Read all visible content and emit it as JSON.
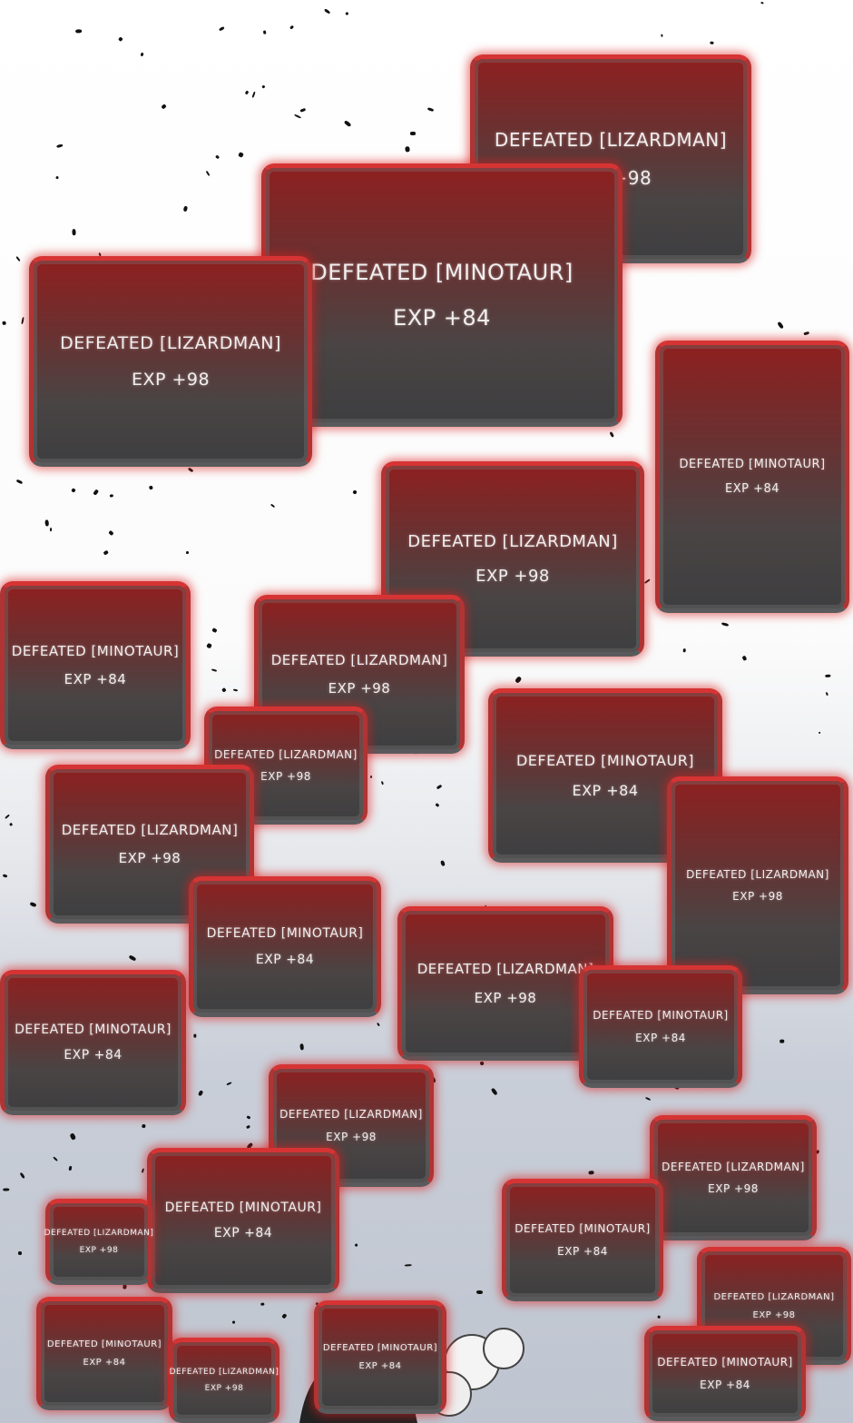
{
  "boxes": [
    {
      "title": "DEFEATED [LIZARDMAN]",
      "exp": "EXP +98"
    },
    {
      "title": "DEFEATED [MINOTAUR]",
      "exp": "EXP +84"
    },
    {
      "title": "DEFEATED [LIZARDMAN]",
      "exp": "EXP +98"
    },
    {
      "title": "DEFEATED [MINOTAUR]",
      "exp": "EXP +84"
    },
    {
      "title": "DEFEATED [LIZARDMAN]",
      "exp": "EXP +98"
    },
    {
      "title": "DEFEATED [MINOTAUR]",
      "exp": "EXP +84"
    },
    {
      "title": "DEFEATED [LIZARDMAN]",
      "exp": "EXP +98"
    },
    {
      "title": "DEFEATED [LIZARDMAN]",
      "exp": "EXP +98"
    },
    {
      "title": "DEFEATED [MINOTAUR]",
      "exp": "EXP +84"
    },
    {
      "title": "DEFEATED [LIZARDMAN]",
      "exp": "EXP +98"
    },
    {
      "title": "DEFEATED [LIZARDMAN]",
      "exp": "EXP +98"
    },
    {
      "title": "DEFEATED [MINOTAUR]",
      "exp": "EXP +84"
    },
    {
      "title": "DEFEATED [LIZARDMAN]",
      "exp": "EXP +98"
    },
    {
      "title": "DEFEATED [MINOTAUR]",
      "exp": "EXP +84"
    },
    {
      "title": "DEFEATED [MINOTAUR]",
      "exp": "EXP +84"
    },
    {
      "title": "DEFEATED [LIZARDMAN]",
      "exp": "EXP +98"
    },
    {
      "title": "DEFEATED [LIZARDMAN]",
      "exp": "EXP +98"
    },
    {
      "title": "DEFEATED [MINOTAUR]",
      "exp": "EXP +84"
    },
    {
      "title": "DEFEATED [LIZARDMAN]",
      "exp": "EXP +98"
    },
    {
      "title": "DEFEATED [MINOTAUR]",
      "exp": "EXP +84"
    },
    {
      "title": "DEFEATED [LIZARDMAN]",
      "exp": "EXP +98"
    },
    {
      "title": "DEFEATED [MINOTAUR]",
      "exp": "EXP +84"
    },
    {
      "title": "DEFEATED [MINOTAUR]",
      "exp": "EXP +84"
    },
    {
      "title": "DEFEATED [LIZARDMAN]",
      "exp": "EXP +98"
    },
    {
      "title": "DEFEATED [MINOTAUR]",
      "exp": "EXP +84"
    }
  ],
  "colors": {
    "box_glow": "#d63434",
    "box_body": "#4a4444",
    "text": "#f2eeee"
  }
}
